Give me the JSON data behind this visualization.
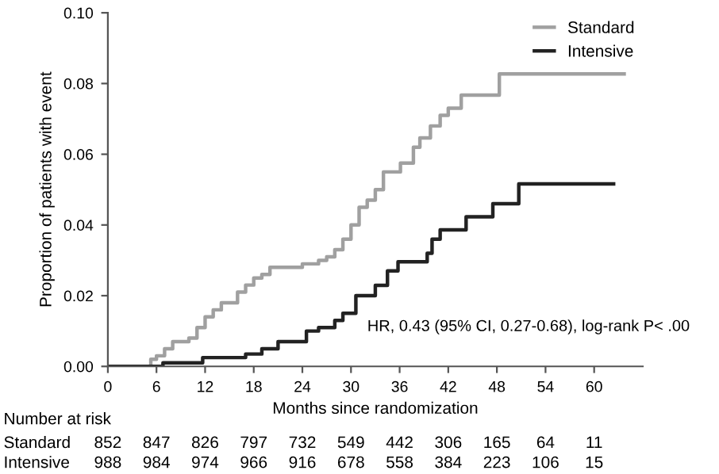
{
  "chart_data": {
    "type": "step",
    "xlabel": "Months since randomization",
    "ylabel": "Proportion of patients with event",
    "xlim": [
      0,
      66
    ],
    "ylim": [
      0,
      0.1
    ],
    "xticks": [
      0,
      6,
      12,
      18,
      24,
      30,
      36,
      42,
      48,
      54,
      60
    ],
    "yticks": [
      {
        "value": 0,
        "label": "0.00"
      },
      {
        "value": 0.02,
        "label": "0.02"
      },
      {
        "value": 0.04,
        "label": "0.04"
      },
      {
        "value": 0.06,
        "label": "0.06"
      },
      {
        "value": 0.08,
        "label": "0.08"
      },
      {
        "value": 0.1,
        "label": "0.10"
      }
    ],
    "legend": "top right",
    "grid": false,
    "marker": "none",
    "line_style": "solid",
    "series": [
      {
        "name": "Standard",
        "color": "#a0a0a0",
        "x": [
          0,
          5.3,
          6,
          7,
          8,
          10,
          11,
          12,
          13,
          14,
          16,
          17,
          18,
          19,
          20,
          22,
          24,
          26,
          27,
          28,
          29,
          30,
          31,
          32,
          33,
          34,
          36.1,
          37.7,
          38.5,
          39.8,
          41,
          42,
          43.6,
          48.3,
          63.7
        ],
        "values": [
          0,
          0.002,
          0.003,
          0.005,
          0.007,
          0.008,
          0.011,
          0.014,
          0.016,
          0.018,
          0.021,
          0.023,
          0.025,
          0.026,
          0.028,
          0.028,
          0.029,
          0.03,
          0.031,
          0.033,
          0.036,
          0.04,
          0.045,
          0.047,
          0.05,
          0.055,
          0.0575,
          0.062,
          0.0646,
          0.068,
          0.071,
          0.073,
          0.0767,
          0.0827,
          0.0827
        ]
      },
      {
        "name": "Intensive",
        "color": "#222222",
        "x": [
          0,
          6.8,
          11.7,
          17,
          19,
          21,
          24.5,
          26,
          28,
          29,
          30.6,
          33,
          34.5,
          35.8,
          39.4,
          40,
          41,
          44.2,
          47.5,
          50.7,
          62.4
        ],
        "values": [
          0,
          0.001,
          0.0025,
          0.0035,
          0.005,
          0.007,
          0.01,
          0.011,
          0.013,
          0.015,
          0.02,
          0.0229,
          0.027,
          0.0296,
          0.032,
          0.036,
          0.0386,
          0.0423,
          0.046,
          0.0516,
          0.0516
        ]
      }
    ],
    "annotations": [
      "HR, 0.43 (95% CI, 0.27-0.68), log-rank P< .00",
      "Number at risk",
      "Standard",
      "852",
      "847",
      "826",
      "797",
      "732",
      "549",
      "442",
      "306",
      "165",
      "64",
      "11",
      "Intensive",
      "988",
      "984",
      "974",
      "966",
      "916",
      "678",
      "558",
      "384",
      "223",
      "106",
      "15"
    ]
  }
}
